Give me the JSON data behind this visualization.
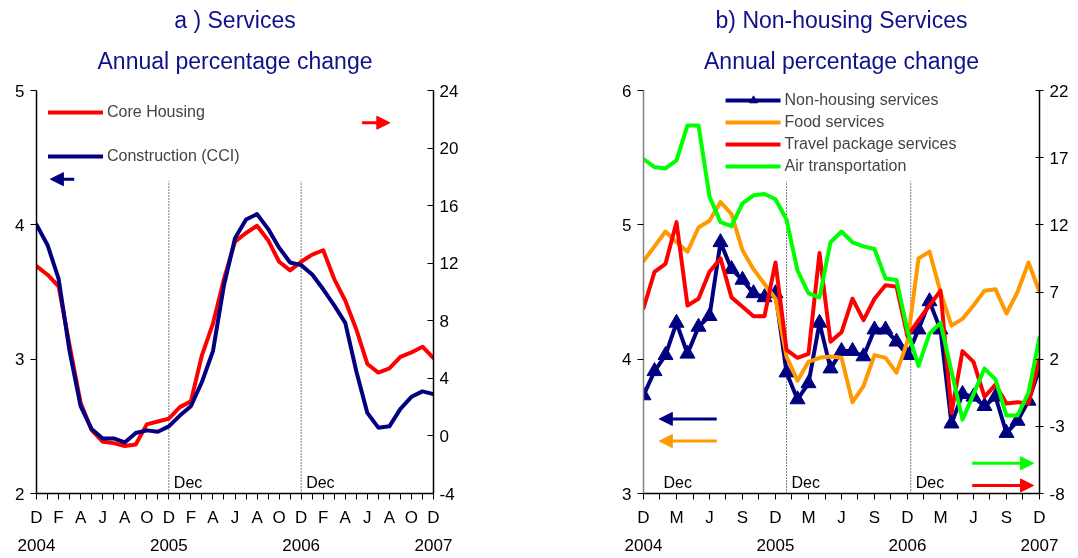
{
  "chart_data": [
    {
      "type": "line",
      "title": "a ) Services",
      "subtitle": "Annual percentage change",
      "x": [
        "2004-12",
        "2005-01",
        "2005-02",
        "2005-03",
        "2005-04",
        "2005-05",
        "2005-06",
        "2005-07",
        "2005-08",
        "2005-09",
        "2005-10",
        "2005-11",
        "2005-12",
        "2006-01",
        "2006-02",
        "2006-03",
        "2006-04",
        "2006-05",
        "2006-06",
        "2006-07",
        "2006-08",
        "2006-09",
        "2006-10",
        "2006-11",
        "2006-12",
        "2007-01",
        "2007-02",
        "2007-03",
        "2007-04",
        "2007-05",
        "2007-06",
        "2007-07",
        "2007-08",
        "2007-09",
        "2007-10",
        "2007-11",
        "2007-12"
      ],
      "xlim": [
        "2004-12",
        "2007-12"
      ],
      "xticks": [
        {
          "value": "2004-12",
          "label": "D\n2004"
        },
        {
          "value": "2005-01",
          "label": null
        },
        {
          "value": "2005-02",
          "label": "F"
        },
        {
          "value": "2005-03",
          "label": null
        },
        {
          "value": "2005-04",
          "label": "A"
        },
        {
          "value": "2005-05",
          "label": null
        },
        {
          "value": "2005-06",
          "label": "J"
        },
        {
          "value": "2005-07",
          "label": null
        },
        {
          "value": "2005-08",
          "label": "A"
        },
        {
          "value": "2005-09",
          "label": null
        },
        {
          "value": "2005-10",
          "label": "O"
        },
        {
          "value": "2005-11",
          "label": null
        },
        {
          "value": "2005-12",
          "label": "D\n2005"
        },
        {
          "value": "2006-01",
          "label": null
        },
        {
          "value": "2006-02",
          "label": "F"
        },
        {
          "value": "2006-03",
          "label": null
        },
        {
          "value": "2006-04",
          "label": "A"
        },
        {
          "value": "2006-05",
          "label": null
        },
        {
          "value": "2006-06",
          "label": "J"
        },
        {
          "value": "2006-07",
          "label": null
        },
        {
          "value": "2006-08",
          "label": "A"
        },
        {
          "value": "2006-09",
          "label": null
        },
        {
          "value": "2006-10",
          "label": "O"
        },
        {
          "value": "2006-11",
          "label": null
        },
        {
          "value": "2006-12",
          "label": "D\n2006"
        },
        {
          "value": "2007-01",
          "label": null
        },
        {
          "value": "2007-02",
          "label": "F"
        },
        {
          "value": "2007-03",
          "label": null
        },
        {
          "value": "2007-04",
          "label": "A"
        },
        {
          "value": "2007-05",
          "label": null
        },
        {
          "value": "2007-06",
          "label": "J"
        },
        {
          "value": "2007-07",
          "label": null
        },
        {
          "value": "2007-08",
          "label": "A"
        },
        {
          "value": "2007-09",
          "label": null
        },
        {
          "value": "2007-10",
          "label": "O"
        },
        {
          "value": "2007-11",
          "label": null
        },
        {
          "value": "2007-12",
          "label": "D\n2007"
        }
      ],
      "ylim": [
        2,
        5
      ],
      "yticks": [
        2,
        3,
        4,
        5
      ],
      "y2lim": [
        -4,
        24
      ],
      "y2ticks": [
        -4,
        0,
        4,
        8,
        12,
        16,
        20,
        24
      ],
      "series": [
        {
          "name": "Core Housing",
          "color": "#ff0000",
          "axis": "y2",
          "values": [
            11.8,
            11.2,
            10.4,
            6.3,
            2.3,
            0.4,
            -0.4,
            -0.5,
            -0.7,
            -0.6,
            0.8,
            1.0,
            1.2,
            2.0,
            2.4,
            5.6,
            7.8,
            10.9,
            13.5,
            14.1,
            14.6,
            13.6,
            12.1,
            11.5,
            12.1,
            12.6,
            12.9,
            10.9,
            9.4,
            7.4,
            5.0,
            4.4,
            4.7,
            5.5,
            5.8,
            6.2,
            5.4
          ]
        },
        {
          "name": "Construction (CCI)",
          "color": "#000080",
          "values": [
            4.0,
            3.85,
            3.6,
            3.06,
            2.65,
            2.48,
            2.41,
            2.41,
            2.38,
            2.45,
            2.47,
            2.46,
            2.5,
            2.58,
            2.65,
            2.83,
            3.06,
            3.55,
            3.9,
            4.04,
            4.08,
            3.97,
            3.83,
            3.72,
            3.7,
            3.63,
            3.52,
            3.4,
            3.27,
            2.91,
            2.6,
            2.49,
            2.5,
            2.63,
            2.72,
            2.76,
            2.74
          ]
        }
      ],
      "ref_lines": [
        {
          "axis": "x",
          "value": "2005-12",
          "label": "Dec",
          "color": "#000000",
          "line_style": "dotted"
        },
        {
          "axis": "x",
          "value": "2006-12",
          "label": "Dec",
          "color": "#000000",
          "line_style": "dotted"
        }
      ],
      "legend": "top left"
    },
    {
      "type": "line",
      "title": "b) Non-housing Services",
      "subtitle": "Annual percentage change",
      "x": [
        "2004-12",
        "2005-01",
        "2005-02",
        "2005-03",
        "2005-04",
        "2005-05",
        "2005-06",
        "2005-07",
        "2005-08",
        "2005-09",
        "2005-10",
        "2005-11",
        "2005-12",
        "2006-01",
        "2006-02",
        "2006-03",
        "2006-04",
        "2006-05",
        "2006-06",
        "2006-07",
        "2006-08",
        "2006-09",
        "2006-10",
        "2006-11",
        "2006-12",
        "2007-01",
        "2007-02",
        "2007-03",
        "2007-04",
        "2007-05",
        "2007-06",
        "2007-07",
        "2007-08",
        "2007-09",
        "2007-10",
        "2007-11",
        "2007-12"
      ],
      "xlim": [
        "2004-12",
        "2007-12"
      ],
      "xticks": [
        {
          "value": "2004-12",
          "label": "D\n2004"
        },
        {
          "value": "2005-01-16",
          "label": null
        },
        {
          "value": "2005-03",
          "label": "M"
        },
        {
          "value": "2005-04-16",
          "label": null
        },
        {
          "value": "2005-06",
          "label": "J"
        },
        {
          "value": "2005-07-16",
          "label": null
        },
        {
          "value": "2005-09",
          "label": "S"
        },
        {
          "value": "2005-10-16",
          "label": null
        },
        {
          "value": "2005-12",
          "label": "D\n2005"
        },
        {
          "value": "2006-01-16",
          "label": null
        },
        {
          "value": "2006-03",
          "label": "M"
        },
        {
          "value": "2006-04-16",
          "label": null
        },
        {
          "value": "2006-06",
          "label": "J"
        },
        {
          "value": "2006-07-16",
          "label": null
        },
        {
          "value": "2006-09",
          "label": "S"
        },
        {
          "value": "2006-10-16",
          "label": null
        },
        {
          "value": "2006-12",
          "label": "D\n2006"
        },
        {
          "value": "2007-01-16",
          "label": null
        },
        {
          "value": "2007-03",
          "label": "M"
        },
        {
          "value": "2007-04-16",
          "label": null
        },
        {
          "value": "2007-06",
          "label": "J"
        },
        {
          "value": "2007-07-16",
          "label": null
        },
        {
          "value": "2007-09",
          "label": "S"
        },
        {
          "value": "2007-10-16",
          "label": null
        },
        {
          "value": "2007-12",
          "label": "D\n2007"
        }
      ],
      "ylim": [
        3,
        6
      ],
      "yticks": [
        3,
        4,
        5,
        6
      ],
      "y2lim": [
        -8,
        22
      ],
      "y2ticks": [
        -8,
        -3,
        2,
        7,
        12,
        17,
        22
      ],
      "series": [
        {
          "name": "Non-housing services",
          "color": "#000080",
          "marker": "triangle",
          "values": [
            3.73,
            3.91,
            4.03,
            4.27,
            4.04,
            4.24,
            4.32,
            4.87,
            4.67,
            4.59,
            4.49,
            4.46,
            4.49,
            3.9,
            3.7,
            3.82,
            4.27,
            3.93,
            4.06,
            4.06,
            4.02,
            4.22,
            4.22,
            4.13,
            4.03,
            4.22,
            4.43,
            4.22,
            3.52,
            3.74,
            3.72,
            3.65,
            3.72,
            3.45,
            3.54,
            3.69,
            3.93
          ]
        },
        {
          "name": "Food services",
          "color": "#ff9900",
          "values": [
            4.73,
            4.84,
            4.95,
            4.87,
            4.8,
            4.98,
            5.03,
            5.17,
            5.08,
            4.81,
            4.67,
            4.56,
            4.45,
            4.02,
            3.84,
            3.98,
            4.01,
            4.02,
            4.01,
            3.68,
            3.8,
            4.03,
            4.01,
            3.9,
            4.13,
            4.75,
            4.8,
            4.5,
            4.25,
            4.3,
            4.4,
            4.51,
            4.52,
            4.34,
            4.5,
            4.72,
            4.5
          ]
        },
        {
          "name": "Travel package services",
          "color": "#ff0000",
          "axis": "y2",
          "values": [
            5.8,
            8.5,
            9.1,
            12.2,
            6.0,
            6.5,
            8.5,
            9.5,
            6.6,
            5.9,
            5.2,
            5.2,
            9.2,
            2.7,
            2.1,
            2.4,
            9.9,
            3.3,
            4.0,
            6.5,
            4.9,
            6.5,
            7.5,
            7.4,
            3.7,
            4.9,
            6.0,
            7.1,
            -2.0,
            2.6,
            1.8,
            -0.8,
            0.1,
            -1.3,
            -1.2,
            -1.3,
            2.0
          ]
        },
        {
          "name": "Air transportation",
          "color": "#00ff00",
          "axis": "y2",
          "values": [
            16.9,
            16.3,
            16.2,
            16.8,
            19.4,
            19.4,
            14.1,
            12.2,
            11.9,
            13.6,
            14.2,
            14.3,
            13.9,
            12.4,
            8.6,
            6.9,
            6.6,
            10.7,
            11.5,
            10.7,
            10.4,
            10.2,
            8.0,
            7.9,
            4.1,
            1.5,
            3.9,
            4.7,
            1.1,
            -2.5,
            -0.6,
            1.3,
            0.5,
            -2.2,
            -2.2,
            -0.5,
            3.6
          ]
        }
      ],
      "ref_lines": [
        {
          "axis": "x",
          "value": "2006-01",
          "label": "Dec",
          "color": "#000000",
          "line_style": "dotted"
        },
        {
          "axis": "x",
          "value": "2006-12-10",
          "label": "Dec",
          "color": "#000000",
          "line_style": "dotted"
        }
      ],
      "annotations": [
        "Dec"
      ],
      "legend": "top"
    }
  ]
}
